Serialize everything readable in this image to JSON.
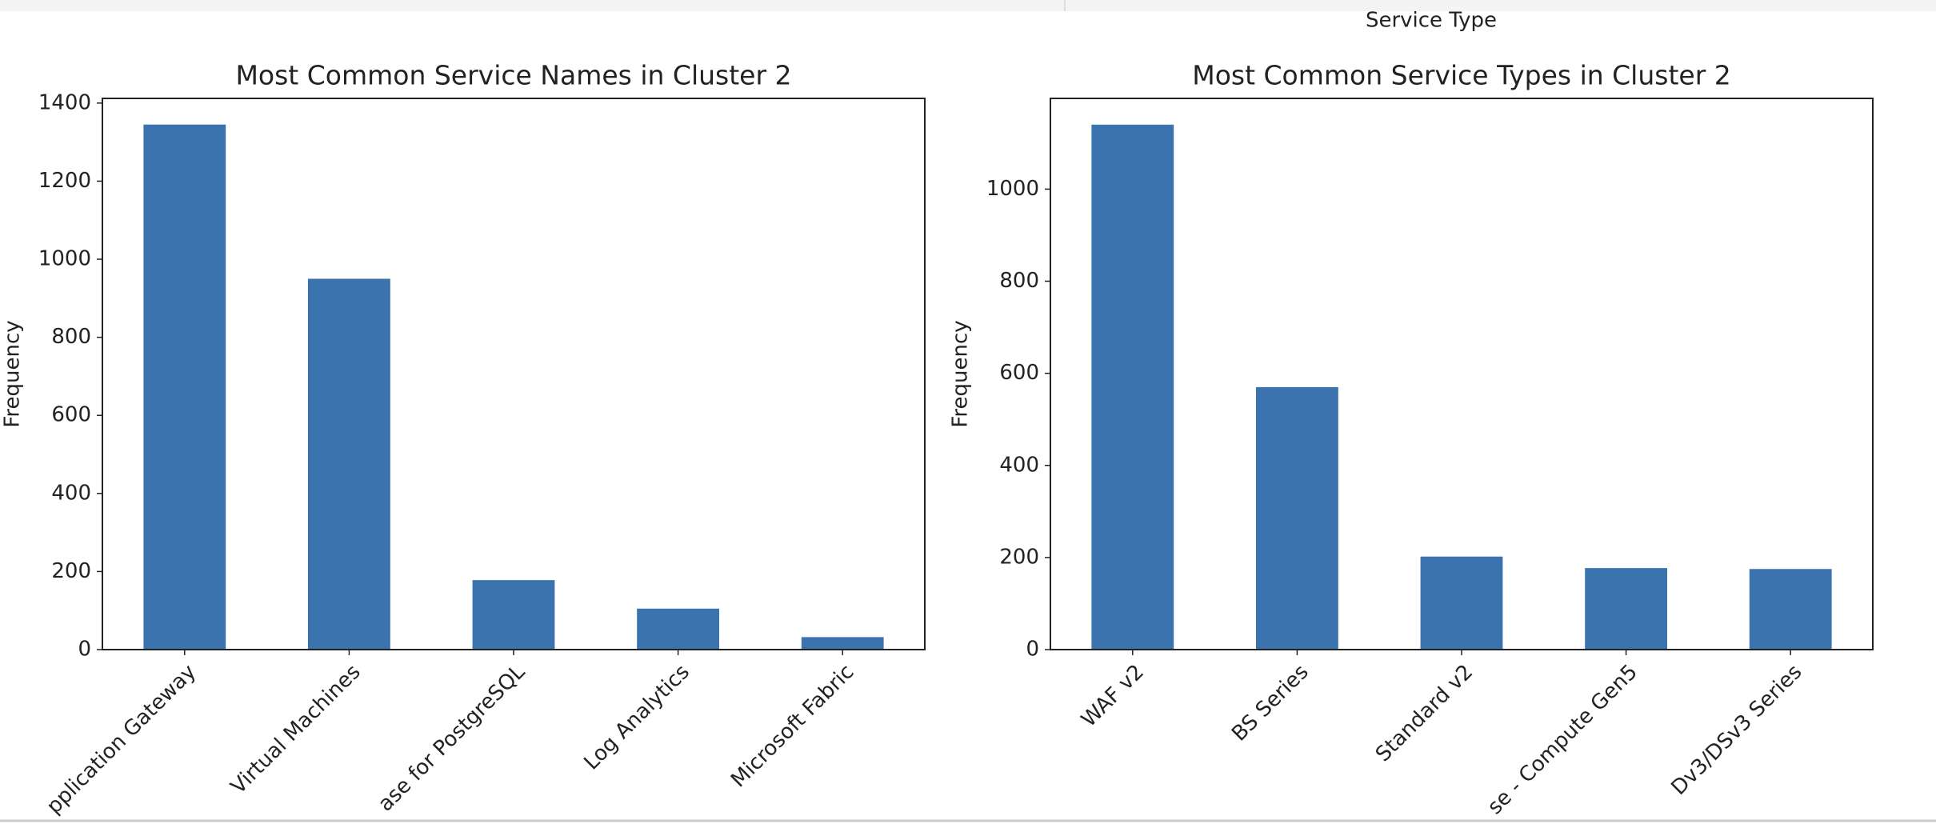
{
  "header": {
    "label": "Service Type"
  },
  "chart_data": [
    {
      "type": "bar",
      "title": "Most Common Service Names in Cluster 2",
      "y_label": "Frequency",
      "categories": [
        "pplication Gateway",
        "Virtual Machines",
        "ase for PostgreSQL",
        "Log Analytics",
        "Microsoft Fabric"
      ],
      "values": [
        1345,
        950,
        178,
        105,
        32
      ],
      "color": "#3a73ae",
      "ylim": [
        0,
        1412
      ],
      "yticks": [
        0,
        200,
        400,
        600,
        800,
        1000,
        1200,
        1400
      ],
      "grid": false
    },
    {
      "type": "bar",
      "title": "Most Common Service Types in Cluster 2",
      "y_label": "Frequency",
      "categories": [
        "WAF v2",
        "BS Series",
        "Standard v2",
        "se - Compute Gen5",
        "Dv3/DSv3 Series"
      ],
      "values": [
        1140,
        570,
        202,
        177,
        175
      ],
      "color": "#3a73ae",
      "ylim": [
        0,
        1197
      ],
      "yticks": [
        0,
        200,
        400,
        600,
        800,
        1000
      ],
      "grid": false
    }
  ]
}
